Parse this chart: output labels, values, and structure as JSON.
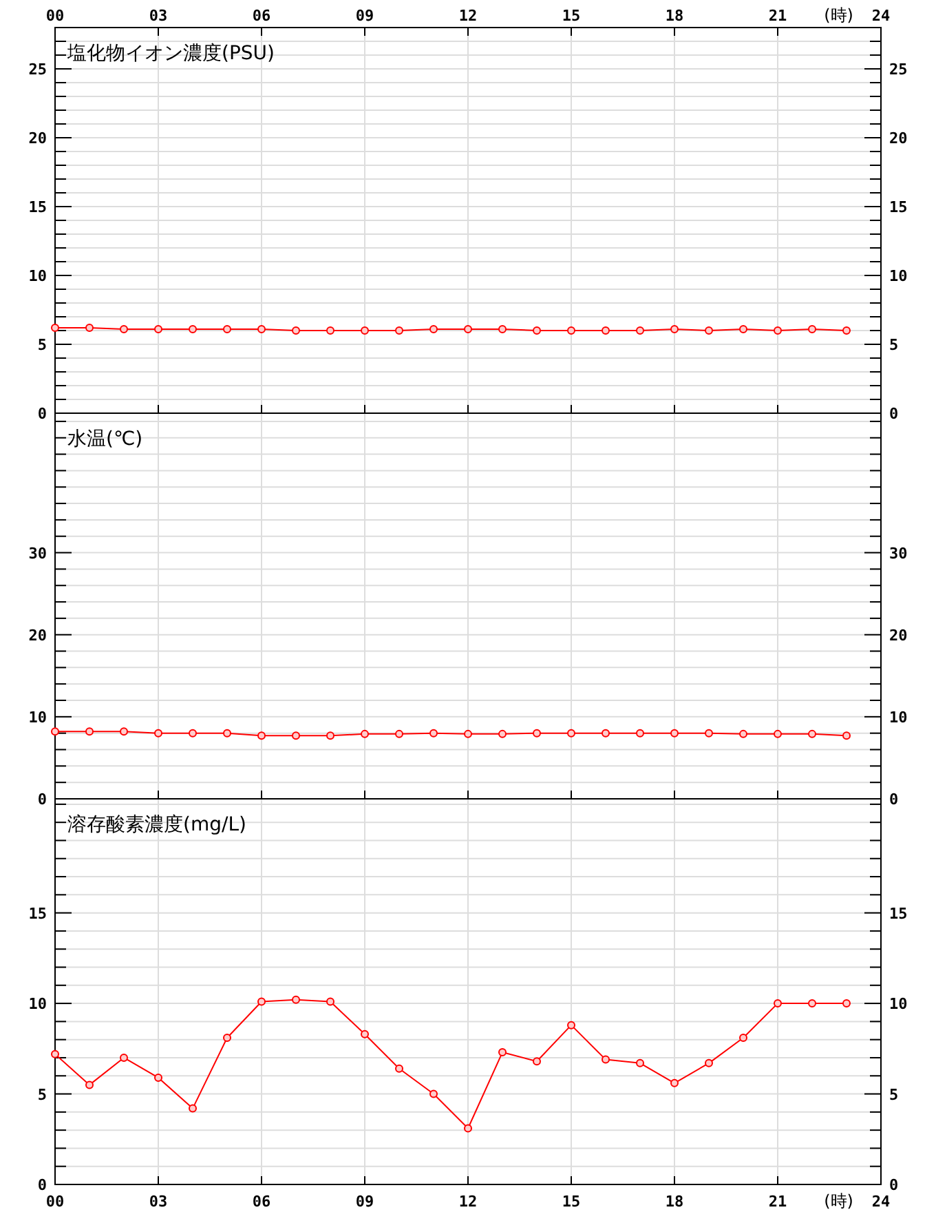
{
  "chart_data": [
    {
      "type": "line",
      "title": "塩化物イオン濃度(PSU)",
      "x": [
        0,
        1,
        2,
        3,
        4,
        5,
        6,
        7,
        8,
        9,
        10,
        11,
        12,
        13,
        14,
        15,
        16,
        17,
        18,
        19,
        20,
        21,
        22,
        23
      ],
      "series": [
        {
          "color": "#ff0000",
          "values": [
            6.2,
            6.2,
            6.1,
            6.1,
            6.1,
            6.1,
            6.1,
            6.0,
            6.0,
            6.0,
            6.0,
            6.1,
            6.1,
            6.1,
            6.0,
            6.0,
            6.0,
            6.0,
            6.1,
            6.0,
            6.1,
            6.0,
            6.1,
            6.0
          ]
        }
      ],
      "xlim": [
        0,
        24
      ],
      "xticks": [
        0,
        3,
        6,
        9,
        12,
        15,
        18,
        21,
        24
      ],
      "tick_labels": "y",
      "x2lim": [
        0,
        24
      ],
      "x2ticks": [
        {
          "value": 0,
          "label": "00"
        },
        {
          "value": 3,
          "label": "03"
        },
        {
          "value": 6,
          "label": "06"
        },
        {
          "value": 9,
          "label": "09"
        },
        12,
        15,
        18,
        21,
        24
      ],
      "x2label": "(時)",
      "ylim": [
        0,
        28
      ],
      "yticks": [
        0,
        {
          "value": 1,
          "label": null
        },
        {
          "value": 2,
          "label": null
        },
        {
          "value": 3,
          "label": null
        },
        {
          "value": 4,
          "label": null
        },
        5,
        {
          "value": 6,
          "label": null
        },
        {
          "value": 7,
          "label": null
        },
        {
          "value": 8,
          "label": null
        },
        {
          "value": 9,
          "label": null
        },
        10,
        {
          "value": 11,
          "label": null
        },
        {
          "value": 12,
          "label": null
        },
        {
          "value": 13,
          "label": null
        },
        {
          "value": 14,
          "label": null
        },
        15,
        {
          "value": 16,
          "label": null
        },
        {
          "value": 17,
          "label": null
        },
        {
          "value": 18,
          "label": null
        },
        {
          "value": 19,
          "label": null
        },
        20,
        {
          "value": 21,
          "label": null
        },
        {
          "value": 22,
          "label": null
        },
        {
          "value": 23,
          "label": null
        },
        {
          "value": 24,
          "label": null
        },
        25,
        {
          "value": 26,
          "label": null
        },
        {
          "value": 27,
          "label": null
        }
      ],
      "y2lim": [
        0,
        28
      ],
      "y2ticks": [
        0,
        5,
        10,
        15,
        20,
        25
      ],
      "grid": true,
      "marker": "circle",
      "line_style": "solid"
    },
    {
      "type": "line",
      "title": "水温(℃)",
      "x": [
        0,
        1,
        2,
        3,
        4,
        5,
        6,
        7,
        8,
        9,
        10,
        11,
        12,
        13,
        14,
        15,
        16,
        17,
        18,
        19,
        20,
        21,
        22,
        23
      ],
      "series": [
        {
          "color": "#ff0000",
          "values": [
            8.2,
            8.2,
            8.2,
            8.0,
            8.0,
            8.0,
            7.7,
            7.7,
            7.7,
            7.9,
            7.9,
            8.0,
            7.9,
            7.9,
            8.0,
            8.0,
            8.0,
            8.0,
            8.0,
            8.0,
            7.9,
            7.9,
            7.9,
            7.7
          ]
        }
      ],
      "xlim": [
        0,
        24
      ],
      "xticks": [
        0,
        3,
        6,
        9,
        12,
        15,
        18,
        21,
        24
      ],
      "tick_labels": "y",
      "ylim": [
        0,
        47
      ],
      "yticks": [
        0,
        {
          "value": 2,
          "label": null
        },
        {
          "value": 4,
          "label": null
        },
        {
          "value": 6,
          "label": null
        },
        {
          "value": 8,
          "label": null
        },
        10,
        {
          "value": 12,
          "label": null
        },
        {
          "value": 14,
          "label": null
        },
        {
          "value": 16,
          "label": null
        },
        {
          "value": 18,
          "label": null
        },
        20,
        {
          "value": 22,
          "label": null
        },
        {
          "value": 24,
          "label": null
        },
        {
          "value": 26,
          "label": null
        },
        {
          "value": 28,
          "label": null
        },
        30,
        {
          "value": 32,
          "label": null
        },
        {
          "value": 34,
          "label": null
        },
        {
          "value": 36,
          "label": null
        },
        {
          "value": 38,
          "label": null
        },
        {
          "value": 40,
          "label": null
        },
        {
          "value": 42,
          "label": null
        },
        {
          "value": 44,
          "label": null
        },
        {
          "value": 46,
          "label": null
        }
      ],
      "y2lim": [
        0,
        47
      ],
      "y2ticks": [
        0,
        10,
        20,
        30
      ],
      "grid": true,
      "marker": "circle",
      "line_style": "solid"
    },
    {
      "type": "line",
      "title": "溶存酸素濃度(mg/L)",
      "x": [
        0,
        1,
        2,
        3,
        4,
        5,
        6,
        7,
        8,
        9,
        10,
        11,
        12,
        13,
        14,
        15,
        16,
        17,
        18,
        19,
        20,
        21,
        22,
        23
      ],
      "series": [
        {
          "color": "#ff0000",
          "values": [
            7.2,
            5.5,
            7.0,
            5.9,
            4.2,
            8.1,
            10.1,
            10.2,
            10.1,
            8.3,
            6.4,
            5.0,
            3.1,
            7.3,
            6.8,
            8.8,
            6.9,
            6.7,
            5.6,
            6.7,
            8.1,
            10.0,
            10.0,
            10.0
          ]
        }
      ],
      "xlim": [
        0,
        24
      ],
      "xticks": [
        {
          "value": 0,
          "label": "00"
        },
        {
          "value": 3,
          "label": "03"
        },
        {
          "value": 6,
          "label": "06"
        },
        {
          "value": 9,
          "label": "09"
        },
        12,
        15,
        18,
        21,
        24
      ],
      "xlabel": "(時)",
      "ylim": [
        0,
        21.3
      ],
      "yticks": [
        0,
        {
          "value": 1,
          "label": null
        },
        {
          "value": 2,
          "label": null
        },
        {
          "value": 3,
          "label": null
        },
        {
          "value": 4,
          "label": null
        },
        5,
        {
          "value": 6,
          "label": null
        },
        {
          "value": 7,
          "label": null
        },
        {
          "value": 8,
          "label": null
        },
        {
          "value": 9,
          "label": null
        },
        10,
        {
          "value": 11,
          "label": null
        },
        {
          "value": 12,
          "label": null
        },
        {
          "value": 13,
          "label": null
        },
        {
          "value": 14,
          "label": null
        },
        15,
        {
          "value": 16,
          "label": null
        },
        {
          "value": 17,
          "label": null
        },
        {
          "value": 18,
          "label": null
        },
        {
          "value": 19,
          "label": null
        },
        {
          "value": 20,
          "label": null
        },
        {
          "value": 21,
          "label": null
        }
      ],
      "y2lim": [
        0,
        21.3
      ],
      "y2ticks": [
        0,
        5,
        10,
        15
      ],
      "grid": true,
      "marker": "circle",
      "line_style": "solid"
    }
  ]
}
